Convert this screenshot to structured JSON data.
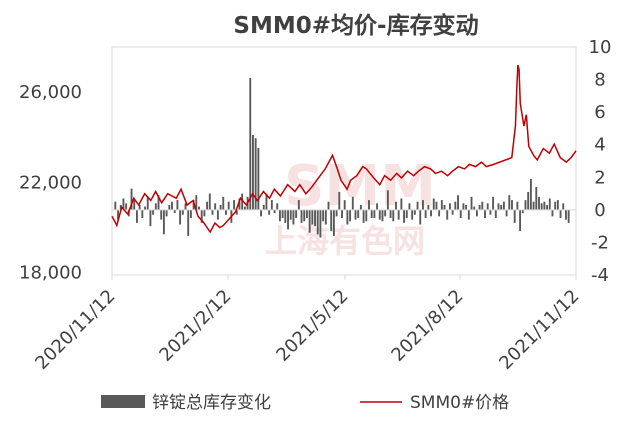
{
  "chart_data": {
    "type": "bar+line",
    "title": "SMM0#均价-库存变动",
    "x_ticks": [
      "2020/11/12",
      "2021/2/12",
      "2021/5/12",
      "2021/8/12",
      "2021/11/12"
    ],
    "x_range": [
      "2020-11-12",
      "2021-11-30"
    ],
    "y_left": {
      "ticks": [
        "18,000",
        "22,000",
        "26,000"
      ],
      "ylim": [
        17900,
        28000
      ]
    },
    "y_right": {
      "ticks": [
        "-4",
        "-2",
        "0",
        "2",
        "4",
        "6",
        "8",
        "10"
      ],
      "ylim": [
        -4,
        10
      ]
    },
    "legend_position": "bottom",
    "series": [
      {
        "name": "锌锭总库存变化",
        "type": "bar",
        "axis": "right",
        "color": "#595959",
        "values": [
          0.5,
          -0.6,
          0.3,
          0.7,
          0.4,
          -0.4,
          1.3,
          0.6,
          -0.8,
          0.3,
          -0.5,
          0.2,
          0.8,
          -1.0,
          -0.3,
          0.4,
          0.9,
          -0.6,
          -1.5,
          -0.4,
          0.3,
          0.5,
          -0.2,
          0.6,
          -0.9,
          -0.3,
          0.4,
          -1.6,
          -0.5,
          0.6,
          0.9,
          0.2,
          -0.8,
          -0.4,
          0.5,
          1.0,
          -0.3,
          0.4,
          -0.6,
          0.3,
          0.8,
          -0.3,
          0.5,
          -0.8,
          0.6,
          -0.3,
          0.7,
          1.0,
          0.2,
          0.8,
          8.1,
          4.6,
          4.4,
          3.8,
          -0.4,
          0.3,
          1.0,
          -0.3,
          0.6,
          -0.2,
          0.4,
          -0.7,
          -0.5,
          -0.8,
          -1.2,
          -0.6,
          -0.9,
          -0.5,
          0.6,
          -0.8,
          -0.7,
          -0.5,
          -1.4,
          -0.9,
          -1.0,
          -1.5,
          -1.7,
          -0.7,
          -0.9,
          0.5,
          -1.3,
          -1.6,
          -0.4,
          1.1,
          -0.5,
          0.6,
          -0.9,
          -0.7,
          0.8,
          -0.6,
          -0.5,
          0.3,
          -0.8,
          -0.7,
          0.6,
          -0.5,
          -0.5,
          0.4,
          -0.6,
          -0.7,
          -0.4,
          1.2,
          -0.5,
          -0.7,
          0.5,
          -0.6,
          0.7,
          -0.8,
          -0.5,
          0.4,
          -0.6,
          -0.3,
          0.5,
          -0.9,
          0.6,
          -0.5,
          0.3,
          -0.4,
          0.7,
          0.5,
          -0.4,
          0.6,
          0.3,
          -0.6,
          0.4,
          -0.3,
          0.5,
          0.9,
          -0.5,
          0.4,
          0.3,
          -0.6,
          0.8,
          0.2,
          -0.4,
          0.3,
          0.5,
          -0.5,
          0.4,
          -0.3,
          0.8,
          -0.5,
          0.4,
          0.3,
          0.5,
          -0.4,
          0.9,
          0.6,
          -0.8,
          0.5,
          -1.3,
          -0.2,
          0.6,
          1.1,
          1.9,
          0.5,
          1.4,
          0.8,
          0.4,
          0.5,
          0.3,
          0.7,
          -0.4,
          0.5,
          0.6,
          -0.5,
          0.4,
          -0.6,
          -0.8
        ]
      },
      {
        "name": "SMM0#价格",
        "type": "line",
        "axis": "left",
        "color": "#c00000",
        "points": [
          [
            "2020-11-12",
            20500
          ],
          [
            "2020-11-16",
            20100
          ],
          [
            "2020-11-20",
            20900
          ],
          [
            "2020-11-25",
            20600
          ],
          [
            "2020-11-30",
            21300
          ],
          [
            "2020-12-04",
            21000
          ],
          [
            "2020-12-09",
            21500
          ],
          [
            "2020-12-14",
            21200
          ],
          [
            "2020-12-18",
            21600
          ],
          [
            "2020-12-23",
            21100
          ],
          [
            "2020-12-28",
            21500
          ],
          [
            "2021-01-04",
            21300
          ],
          [
            "2021-01-08",
            21700
          ],
          [
            "2021-01-13",
            21000
          ],
          [
            "2021-01-18",
            21200
          ],
          [
            "2021-01-22",
            20500
          ],
          [
            "2021-01-27",
            20200
          ],
          [
            "2021-02-01",
            19800
          ],
          [
            "2021-02-05",
            20200
          ],
          [
            "2021-02-09",
            20000
          ],
          [
            "2021-02-12",
            20100
          ],
          [
            "2021-02-22",
            20700
          ],
          [
            "2021-02-26",
            21300
          ],
          [
            "2021-03-03",
            21000
          ],
          [
            "2021-03-08",
            21500
          ],
          [
            "2021-03-12",
            21200
          ],
          [
            "2021-03-17",
            21600
          ],
          [
            "2021-03-22",
            21300
          ],
          [
            "2021-03-26",
            21700
          ],
          [
            "2021-03-31",
            21400
          ],
          [
            "2021-04-06",
            21900
          ],
          [
            "2021-04-12",
            21600
          ],
          [
            "2021-04-16",
            21900
          ],
          [
            "2021-04-21",
            21500
          ],
          [
            "2021-04-26",
            21800
          ],
          [
            "2021-04-30",
            22100
          ],
          [
            "2021-05-07",
            22600
          ],
          [
            "2021-05-11",
            23000
          ],
          [
            "2021-05-13",
            23200
          ],
          [
            "2021-05-17",
            22600
          ],
          [
            "2021-05-20",
            22100
          ],
          [
            "2021-05-25",
            21700
          ],
          [
            "2021-05-28",
            22100
          ],
          [
            "2021-06-02",
            22300
          ],
          [
            "2021-06-07",
            22700
          ],
          [
            "2021-06-10",
            22600
          ],
          [
            "2021-06-16",
            22200
          ],
          [
            "2021-06-21",
            21900
          ],
          [
            "2021-06-25",
            22300
          ],
          [
            "2021-06-30",
            22100
          ],
          [
            "2021-07-05",
            22400
          ],
          [
            "2021-07-09",
            22200
          ],
          [
            "2021-07-14",
            22500
          ],
          [
            "2021-07-19",
            22300
          ],
          [
            "2021-07-23",
            22500
          ],
          [
            "2021-07-28",
            22700
          ],
          [
            "2021-08-02",
            22600
          ],
          [
            "2021-08-06",
            22400
          ],
          [
            "2021-08-11",
            22500
          ],
          [
            "2021-08-16",
            22300
          ],
          [
            "2021-08-20",
            22500
          ],
          [
            "2021-08-25",
            22700
          ],
          [
            "2021-08-30",
            22600
          ],
          [
            "2021-09-03",
            22800
          ],
          [
            "2021-09-08",
            22700
          ],
          [
            "2021-09-13",
            22900
          ],
          [
            "2021-09-17",
            22700
          ],
          [
            "2021-09-23",
            22800
          ],
          [
            "2021-09-28",
            22900
          ],
          [
            "2021-10-08",
            23100
          ],
          [
            "2021-10-11",
            24500
          ],
          [
            "2021-10-12",
            26000
          ],
          [
            "2021-10-13",
            27200
          ],
          [
            "2021-10-14",
            27000
          ],
          [
            "2021-10-15",
            25500
          ],
          [
            "2021-10-18",
            24500
          ],
          [
            "2021-10-20",
            25000
          ],
          [
            "2021-10-22",
            23600
          ],
          [
            "2021-10-26",
            23200
          ],
          [
            "2021-10-29",
            23000
          ],
          [
            "2021-11-03",
            23500
          ],
          [
            "2021-11-08",
            23300
          ],
          [
            "2021-11-12",
            23700
          ],
          [
            "2021-11-17",
            23100
          ],
          [
            "2021-11-22",
            22900
          ],
          [
            "2021-11-26",
            23100
          ],
          [
            "2021-11-30",
            23400
          ]
        ]
      }
    ],
    "watermark": "SMM 上海有色网"
  }
}
